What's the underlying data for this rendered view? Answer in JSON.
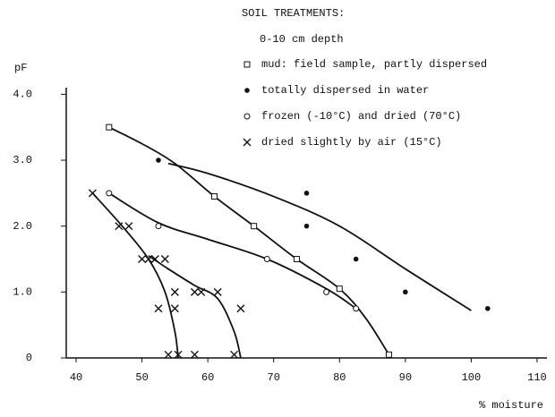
{
  "chart_data": {
    "type": "scatter",
    "legend_title": "SOIL TREATMENTS:",
    "legend_subtitle": "0-10 cm depth",
    "xlabel": "% moisture",
    "ylabel": "pF",
    "xlim": [
      38.5,
      111.5
    ],
    "ylim": [
      0,
      4.1
    ],
    "xticks": [
      40,
      50,
      60,
      70,
      80,
      90,
      100,
      110
    ],
    "yticks": [
      0,
      {
        "value": 1,
        "label": "1.0"
      },
      {
        "value": 2,
        "label": "2.0"
      },
      {
        "value": 3,
        "label": "3.0"
      },
      {
        "value": 4,
        "label": "4.0"
      }
    ],
    "series": [
      {
        "name": "mud: field sample, partly dispersed",
        "marker": "square",
        "color": "#111",
        "x": [
          45,
          61,
          67,
          73.5,
          80,
          87.5
        ],
        "values": [
          3.5,
          2.45,
          2.0,
          1.5,
          1.05,
          0.05
        ]
      },
      {
        "name": "totally dispersed in water",
        "marker": "dot",
        "color": "#111",
        "x": [
          52.5,
          75,
          75,
          82.5,
          90,
          102.5
        ],
        "values": [
          3.0,
          2.5,
          2.0,
          1.5,
          1.0,
          0.75
        ]
      },
      {
        "name": "frozen (-10°C) and dried (70°C)",
        "marker": "circle",
        "color": "#111",
        "x": [
          45,
          52.5,
          69,
          78,
          82.5
        ],
        "values": [
          2.5,
          2.0,
          1.5,
          1.0,
          0.75
        ]
      },
      {
        "name": "dried slightly by air (15°C)",
        "marker": "cross",
        "color": "#111",
        "x": [
          42.5,
          46.5,
          48,
          50,
          51,
          52,
          53.5,
          52.5,
          55,
          55,
          58,
          59,
          61.5,
          65,
          54,
          55.5,
          58,
          64
        ],
        "values": [
          2.5,
          2.0,
          2.0,
          1.5,
          1.5,
          1.5,
          1.5,
          0.75,
          1.0,
          0.75,
          1.0,
          1.0,
          1.0,
          0.75,
          0.05,
          0.05,
          0.05,
          0.05
        ]
      }
    ],
    "curves": [
      {
        "x": [
          45,
          50,
          55,
          61,
          67,
          73.5,
          80,
          84,
          87.5
        ],
        "values": [
          3.5,
          3.25,
          2.95,
          2.45,
          2.0,
          1.5,
          1.05,
          0.6,
          0.05
        ]
      },
      {
        "x": [
          54,
          60,
          70,
          80,
          90,
          100
        ],
        "values": [
          2.95,
          2.8,
          2.45,
          2.0,
          1.35,
          0.72
        ]
      },
      {
        "x": [
          45,
          52.5,
          60,
          69,
          78,
          82.5
        ],
        "values": [
          2.5,
          2.05,
          1.8,
          1.5,
          1.05,
          0.75
        ]
      },
      {
        "x": [
          42.5,
          47,
          51,
          53.5,
          55,
          55.5
        ],
        "values": [
          2.5,
          2.0,
          1.5,
          1.0,
          0.4,
          0.0
        ]
      },
      {
        "x": [
          51,
          54,
          58,
          61.5,
          64,
          65
        ],
        "values": [
          1.55,
          1.35,
          1.1,
          0.9,
          0.4,
          0.0
        ]
      }
    ]
  }
}
